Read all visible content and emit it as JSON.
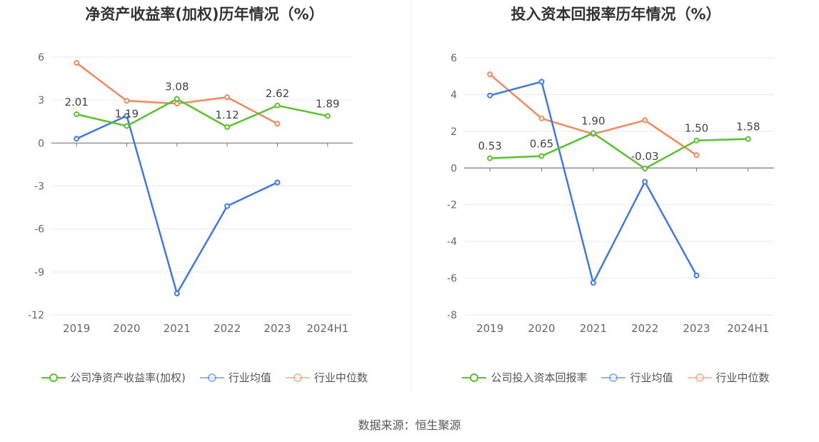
{
  "source_label": "数据来源：恒生聚源",
  "colors": {
    "company": "#59c12d",
    "avg": "#3f78de",
    "median": "#f0895f"
  },
  "chart_data": [
    {
      "type": "line",
      "title": "净资产收益率(加权)历年情况（%）",
      "categories": [
        "2019",
        "2020",
        "2021",
        "2022",
        "2023",
        "2024H1"
      ],
      "yticks": [
        6,
        3,
        0,
        -3,
        -6,
        -9,
        -12
      ],
      "ylim": [
        -12,
        6
      ],
      "series": [
        {
          "name": "公司净资产收益率(加权)",
          "key": "company",
          "values": [
            2.01,
            1.19,
            3.08,
            1.12,
            2.62,
            1.89
          ],
          "labels": [
            "2.01",
            "1.19",
            "3.08",
            "1.12",
            "2.62",
            "1.89"
          ]
        },
        {
          "name": "行业均值",
          "key": "avg",
          "values": [
            0.3,
            1.9,
            -10.5,
            -4.4,
            -2.75,
            null
          ]
        },
        {
          "name": "行业中位数",
          "key": "median",
          "values": [
            5.6,
            2.95,
            2.75,
            3.2,
            1.35,
            null
          ]
        }
      ]
    },
    {
      "type": "line",
      "title": "投入资本回报率历年情况（%）",
      "categories": [
        "2019",
        "2020",
        "2021",
        "2022",
        "2023",
        "2024H1"
      ],
      "yticks": [
        6,
        4,
        2,
        0,
        -2,
        -4,
        -6,
        -8
      ],
      "ylim": [
        -8,
        6
      ],
      "series": [
        {
          "name": "公司投入资本回报率",
          "key": "company",
          "values": [
            0.53,
            0.65,
            1.9,
            -0.03,
            1.5,
            1.58
          ],
          "labels": [
            "0.53",
            "0.65",
            "1.90",
            "-0.03",
            "1.50",
            "1.58"
          ]
        },
        {
          "name": "行业均值",
          "key": "avg",
          "values": [
            3.95,
            4.7,
            -6.25,
            -0.75,
            -5.85,
            null
          ]
        },
        {
          "name": "行业中位数",
          "key": "median",
          "values": [
            5.1,
            2.7,
            1.85,
            2.6,
            0.7,
            null
          ]
        }
      ]
    }
  ]
}
